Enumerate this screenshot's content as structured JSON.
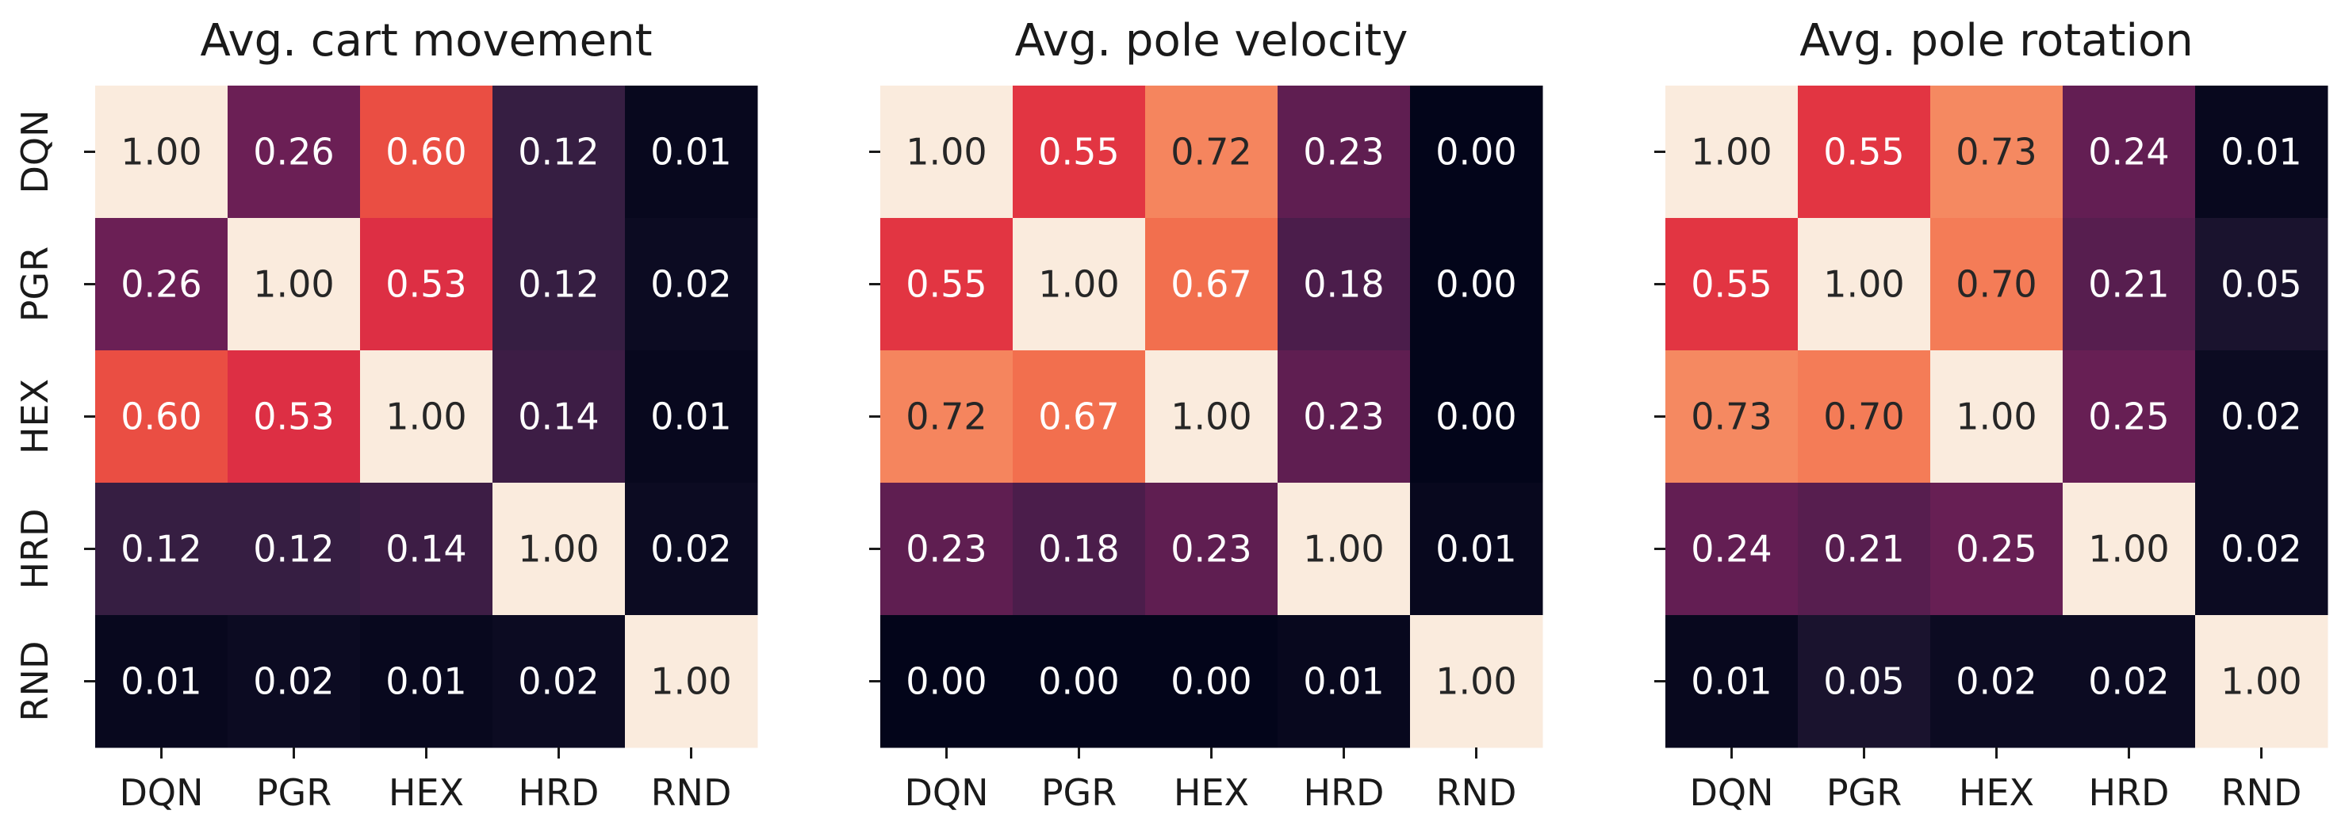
{
  "chart_data": [
    {
      "type": "heatmap",
      "title": "Avg. cart movement",
      "xlabel": "",
      "ylabel": "",
      "x_categories": [
        "DQN",
        "PGR",
        "HEX",
        "HRD",
        "RND"
      ],
      "y_categories": [
        "DQN",
        "PGR",
        "HEX",
        "HRD",
        "RND"
      ],
      "values": [
        [
          1.0,
          0.26,
          0.6,
          0.12,
          0.01
        ],
        [
          0.26,
          1.0,
          0.53,
          0.12,
          0.02
        ],
        [
          0.6,
          0.53,
          1.0,
          0.14,
          0.01
        ],
        [
          0.12,
          0.12,
          0.14,
          1.0,
          0.02
        ],
        [
          0.01,
          0.02,
          0.01,
          0.02,
          1.0
        ]
      ],
      "value_labels": [
        [
          "1.00",
          "0.26",
          "0.60",
          "0.12",
          "0.01"
        ],
        [
          "0.26",
          "1.00",
          "0.53",
          "0.12",
          "0.02"
        ],
        [
          "0.60",
          "0.53",
          "1.00",
          "0.14",
          "0.01"
        ],
        [
          "0.12",
          "0.12",
          "0.14",
          "1.00",
          "0.02"
        ],
        [
          "0.01",
          "0.02",
          "0.01",
          "0.02",
          "1.00"
        ]
      ],
      "vmin": 0,
      "vmax": 1,
      "show_y_tick_labels": true,
      "colorbar": false
    },
    {
      "type": "heatmap",
      "title": "Avg. pole velocity",
      "xlabel": "",
      "ylabel": "",
      "x_categories": [
        "DQN",
        "PGR",
        "HEX",
        "HRD",
        "RND"
      ],
      "y_categories": [
        "DQN",
        "PGR",
        "HEX",
        "HRD",
        "RND"
      ],
      "values": [
        [
          1.0,
          0.55,
          0.72,
          0.23,
          0.0
        ],
        [
          0.55,
          1.0,
          0.67,
          0.18,
          0.0
        ],
        [
          0.72,
          0.67,
          1.0,
          0.23,
          0.0
        ],
        [
          0.23,
          0.18,
          0.23,
          1.0,
          0.01
        ],
        [
          0.0,
          0.0,
          0.0,
          0.01,
          1.0
        ]
      ],
      "value_labels": [
        [
          "1.00",
          "0.55",
          "0.72",
          "0.23",
          "0.00"
        ],
        [
          "0.55",
          "1.00",
          "0.67",
          "0.18",
          "0.00"
        ],
        [
          "0.72",
          "0.67",
          "1.00",
          "0.23",
          "0.00"
        ],
        [
          "0.23",
          "0.18",
          "0.23",
          "1.00",
          "0.01"
        ],
        [
          "0.00",
          "0.00",
          "0.00",
          "0.01",
          "1.00"
        ]
      ],
      "vmin": 0,
      "vmax": 1,
      "show_y_tick_labels": false,
      "colorbar": false
    },
    {
      "type": "heatmap",
      "title": "Avg. pole rotation",
      "xlabel": "",
      "ylabel": "",
      "x_categories": [
        "DQN",
        "PGR",
        "HEX",
        "HRD",
        "RND"
      ],
      "y_categories": [
        "DQN",
        "PGR",
        "HEX",
        "HRD",
        "RND"
      ],
      "values": [
        [
          1.0,
          0.55,
          0.73,
          0.24,
          0.01
        ],
        [
          0.55,
          1.0,
          0.7,
          0.21,
          0.05
        ],
        [
          0.73,
          0.7,
          1.0,
          0.25,
          0.02
        ],
        [
          0.24,
          0.21,
          0.25,
          1.0,
          0.02
        ],
        [
          0.01,
          0.05,
          0.02,
          0.02,
          1.0
        ]
      ],
      "value_labels": [
        [
          "1.00",
          "0.55",
          "0.73",
          "0.24",
          "0.01"
        ],
        [
          "0.55",
          "1.00",
          "0.70",
          "0.21",
          "0.05"
        ],
        [
          "0.73",
          "0.70",
          "1.00",
          "0.25",
          "0.02"
        ],
        [
          "0.24",
          "0.21",
          "0.25",
          "1.00",
          "0.02"
        ],
        [
          "0.01",
          "0.05",
          "0.02",
          "0.02",
          "1.00"
        ]
      ],
      "vmin": 0,
      "vmax": 1,
      "show_y_tick_labels": false,
      "colorbar": false
    }
  ],
  "colormap": {
    "name": "rocket",
    "stops": [
      "#03051a",
      "#2c1e3e",
      "#4c1d4b",
      "#701f57",
      "#a11a5b",
      "#cb1b4f",
      "#e13342",
      "#f06043",
      "#f58860",
      "#f6b48f",
      "#f9dac4",
      "#faebdd"
    ],
    "light_text": "#ffffff",
    "dark_text": "#262626"
  }
}
